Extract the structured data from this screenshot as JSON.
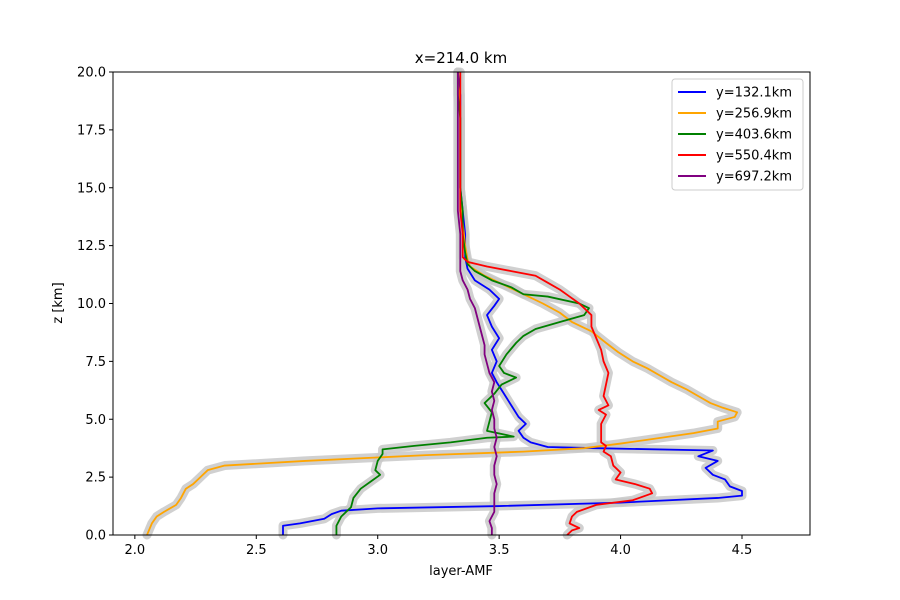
{
  "chart_data": {
    "type": "line",
    "title": "x=214.0 km",
    "xlabel": "layer-AMF",
    "ylabel": "z [km]",
    "xlim": [
      1.91,
      4.78
    ],
    "ylim": [
      0,
      20
    ],
    "xticks": [
      2.0,
      2.5,
      3.0,
      3.5,
      4.0,
      4.5
    ],
    "xtick_labels": [
      "2.0",
      "2.5",
      "3.0",
      "3.5",
      "4.0",
      "4.5"
    ],
    "yticks": [
      0,
      2.5,
      5,
      7.5,
      10,
      12.5,
      15,
      17.5,
      20
    ],
    "ytick_labels": [
      "0.0",
      "2.5",
      "5.0",
      "7.5",
      "10.0",
      "12.5",
      "15.0",
      "17.5",
      "20.0"
    ],
    "grid": false,
    "legend_position": "top-right",
    "band_color": "#c8c8c8",
    "series": [
      {
        "name": "y=132.1km",
        "color": "#0000ff",
        "points": [
          [
            2.61,
            0.0
          ],
          [
            2.61,
            0.4
          ],
          [
            2.68,
            0.5
          ],
          [
            2.78,
            0.7
          ],
          [
            2.81,
            0.9
          ],
          [
            2.85,
            1.05
          ],
          [
            3.0,
            1.15
          ],
          [
            3.5,
            1.25
          ],
          [
            4.0,
            1.4
          ],
          [
            4.4,
            1.6
          ],
          [
            4.5,
            1.7
          ],
          [
            4.5,
            1.9
          ],
          [
            4.45,
            2.1
          ],
          [
            4.43,
            2.4
          ],
          [
            4.38,
            2.6
          ],
          [
            4.35,
            2.9
          ],
          [
            4.4,
            3.2
          ],
          [
            4.32,
            3.4
          ],
          [
            4.38,
            3.65
          ],
          [
            3.9,
            3.75
          ],
          [
            3.7,
            3.8
          ],
          [
            3.63,
            4.0
          ],
          [
            3.6,
            4.2
          ],
          [
            3.58,
            4.5
          ],
          [
            3.61,
            4.8
          ],
          [
            3.58,
            5.1
          ],
          [
            3.55,
            5.6
          ],
          [
            3.52,
            6.1
          ],
          [
            3.49,
            6.6
          ],
          [
            3.47,
            7.0
          ],
          [
            3.49,
            7.5
          ],
          [
            3.47,
            8.0
          ],
          [
            3.5,
            8.5
          ],
          [
            3.47,
            9.0
          ],
          [
            3.45,
            9.5
          ],
          [
            3.48,
            9.9
          ],
          [
            3.5,
            10.2
          ],
          [
            3.46,
            10.6
          ],
          [
            3.4,
            11.0
          ],
          [
            3.37,
            11.5
          ],
          [
            3.36,
            12.0
          ],
          [
            3.36,
            13.0
          ],
          [
            3.35,
            14.0
          ],
          [
            3.34,
            15.0
          ],
          [
            3.34,
            16.0
          ],
          [
            3.34,
            17.0
          ],
          [
            3.34,
            18.0
          ],
          [
            3.34,
            19.0
          ],
          [
            3.33,
            20.0
          ]
        ]
      },
      {
        "name": "y=256.9km",
        "color": "#ffa500",
        "points": [
          [
            2.05,
            0.0
          ],
          [
            2.07,
            0.5
          ],
          [
            2.09,
            0.8
          ],
          [
            2.12,
            1.0
          ],
          [
            2.17,
            1.3
          ],
          [
            2.19,
            1.6
          ],
          [
            2.21,
            2.0
          ],
          [
            2.24,
            2.2
          ],
          [
            2.27,
            2.5
          ],
          [
            2.3,
            2.8
          ],
          [
            2.37,
            3.0
          ],
          [
            2.7,
            3.2
          ],
          [
            3.2,
            3.45
          ],
          [
            3.6,
            3.6
          ],
          [
            3.85,
            3.75
          ],
          [
            4.0,
            3.95
          ],
          [
            4.1,
            4.1
          ],
          [
            4.2,
            4.25
          ],
          [
            4.3,
            4.4
          ],
          [
            4.4,
            4.6
          ],
          [
            4.4,
            4.9
          ],
          [
            4.47,
            5.1
          ],
          [
            4.48,
            5.3
          ],
          [
            4.42,
            5.5
          ],
          [
            4.37,
            5.7
          ],
          [
            4.32,
            6.0
          ],
          [
            4.27,
            6.3
          ],
          [
            4.21,
            6.6
          ],
          [
            4.16,
            6.9
          ],
          [
            4.11,
            7.2
          ],
          [
            4.05,
            7.5
          ],
          [
            3.99,
            7.9
          ],
          [
            3.94,
            8.3
          ],
          [
            3.88,
            8.8
          ],
          [
            3.8,
            9.2
          ],
          [
            3.75,
            9.6
          ],
          [
            3.68,
            10.0
          ],
          [
            3.6,
            10.4
          ],
          [
            3.52,
            10.8
          ],
          [
            3.44,
            11.2
          ],
          [
            3.38,
            11.6
          ],
          [
            3.37,
            11.9
          ],
          [
            3.36,
            12.5
          ],
          [
            3.35,
            13.5
          ],
          [
            3.34,
            14.5
          ],
          [
            3.34,
            15.5
          ],
          [
            3.34,
            16.5
          ],
          [
            3.34,
            17.5
          ],
          [
            3.34,
            18.5
          ],
          [
            3.33,
            19.5
          ],
          [
            3.33,
            20.0
          ]
        ]
      },
      {
        "name": "y=403.6km",
        "color": "#008000",
        "points": [
          [
            2.83,
            0.0
          ],
          [
            2.83,
            0.4
          ],
          [
            2.85,
            0.8
          ],
          [
            2.89,
            1.2
          ],
          [
            2.9,
            1.6
          ],
          [
            2.93,
            2.0
          ],
          [
            2.97,
            2.3
          ],
          [
            3.01,
            2.6
          ],
          [
            2.99,
            2.8
          ],
          [
            3.0,
            3.2
          ],
          [
            3.02,
            3.5
          ],
          [
            3.02,
            3.7
          ],
          [
            3.15,
            3.85
          ],
          [
            3.3,
            4.0
          ],
          [
            3.45,
            4.2
          ],
          [
            3.56,
            4.25
          ],
          [
            3.45,
            4.5
          ],
          [
            3.46,
            4.9
          ],
          [
            3.47,
            5.3
          ],
          [
            3.44,
            5.7
          ],
          [
            3.48,
            6.1
          ],
          [
            3.51,
            6.5
          ],
          [
            3.57,
            6.8
          ],
          [
            3.52,
            7.0
          ],
          [
            3.5,
            7.3
          ],
          [
            3.53,
            7.8
          ],
          [
            3.57,
            8.3
          ],
          [
            3.6,
            8.6
          ],
          [
            3.65,
            8.9
          ],
          [
            3.75,
            9.2
          ],
          [
            3.85,
            9.5
          ],
          [
            3.87,
            9.8
          ],
          [
            3.83,
            10.0
          ],
          [
            3.7,
            10.3
          ],
          [
            3.6,
            10.4
          ],
          [
            3.55,
            10.7
          ],
          [
            3.47,
            11.0
          ],
          [
            3.4,
            11.4
          ],
          [
            3.37,
            11.7
          ],
          [
            3.36,
            12.2
          ],
          [
            3.35,
            13.0
          ],
          [
            3.35,
            14.0
          ],
          [
            3.34,
            15.0
          ],
          [
            3.34,
            16.0
          ],
          [
            3.34,
            17.0
          ],
          [
            3.34,
            18.0
          ],
          [
            3.33,
            19.0
          ],
          [
            3.33,
            20.0
          ]
        ]
      },
      {
        "name": "y=550.4km",
        "color": "#ff0000",
        "points": [
          [
            3.78,
            0.0
          ],
          [
            3.8,
            0.2
          ],
          [
            3.83,
            0.3
          ],
          [
            3.79,
            0.5
          ],
          [
            3.8,
            0.8
          ],
          [
            3.82,
            1.0
          ],
          [
            3.9,
            1.3
          ],
          [
            4.05,
            1.5
          ],
          [
            4.13,
            1.8
          ],
          [
            4.12,
            2.0
          ],
          [
            4.06,
            2.2
          ],
          [
            3.98,
            2.4
          ],
          [
            4.0,
            2.7
          ],
          [
            3.97,
            3.0
          ],
          [
            3.96,
            3.4
          ],
          [
            3.93,
            3.6
          ],
          [
            3.94,
            3.85
          ],
          [
            3.92,
            4.0
          ],
          [
            3.92,
            4.4
          ],
          [
            3.92,
            4.8
          ],
          [
            3.94,
            5.2
          ],
          [
            3.91,
            5.4
          ],
          [
            3.95,
            5.6
          ],
          [
            3.93,
            6.0
          ],
          [
            3.94,
            6.5
          ],
          [
            3.95,
            7.0
          ],
          [
            3.93,
            7.5
          ],
          [
            3.92,
            8.0
          ],
          [
            3.9,
            8.5
          ],
          [
            3.88,
            9.0
          ],
          [
            3.88,
            9.5
          ],
          [
            3.83,
            10.0
          ],
          [
            3.79,
            10.3
          ],
          [
            3.75,
            10.6
          ],
          [
            3.7,
            10.9
          ],
          [
            3.65,
            11.2
          ],
          [
            3.55,
            11.4
          ],
          [
            3.45,
            11.6
          ],
          [
            3.37,
            11.8
          ],
          [
            3.35,
            12.0
          ],
          [
            3.35,
            13.0
          ],
          [
            3.34,
            14.0
          ],
          [
            3.34,
            15.0
          ],
          [
            3.34,
            16.0
          ],
          [
            3.34,
            17.0
          ],
          [
            3.34,
            18.0
          ],
          [
            3.34,
            19.0
          ],
          [
            3.34,
            20.0
          ]
        ]
      },
      {
        "name": "y=697.2km",
        "color": "#800080",
        "points": [
          [
            3.47,
            0.0
          ],
          [
            3.47,
            0.3
          ],
          [
            3.46,
            0.6
          ],
          [
            3.48,
            1.0
          ],
          [
            3.48,
            1.4
          ],
          [
            3.48,
            1.8
          ],
          [
            3.49,
            2.2
          ],
          [
            3.48,
            2.6
          ],
          [
            3.48,
            3.0
          ],
          [
            3.49,
            3.4
          ],
          [
            3.48,
            3.8
          ],
          [
            3.49,
            4.2
          ],
          [
            3.48,
            4.6
          ],
          [
            3.48,
            5.0
          ],
          [
            3.47,
            5.4
          ],
          [
            3.48,
            5.8
          ],
          [
            3.47,
            6.2
          ],
          [
            3.48,
            6.6
          ],
          [
            3.46,
            7.0
          ],
          [
            3.45,
            7.4
          ],
          [
            3.44,
            7.8
          ],
          [
            3.44,
            8.2
          ],
          [
            3.43,
            8.6
          ],
          [
            3.42,
            9.0
          ],
          [
            3.41,
            9.4
          ],
          [
            3.4,
            9.8
          ],
          [
            3.38,
            10.2
          ],
          [
            3.37,
            10.6
          ],
          [
            3.35,
            11.0
          ],
          [
            3.34,
            11.4
          ],
          [
            3.34,
            12.0
          ],
          [
            3.34,
            13.0
          ],
          [
            3.33,
            14.0
          ],
          [
            3.33,
            15.0
          ],
          [
            3.33,
            16.0
          ],
          [
            3.33,
            17.0
          ],
          [
            3.33,
            18.0
          ],
          [
            3.33,
            19.0
          ],
          [
            3.33,
            20.0
          ]
        ]
      }
    ]
  }
}
